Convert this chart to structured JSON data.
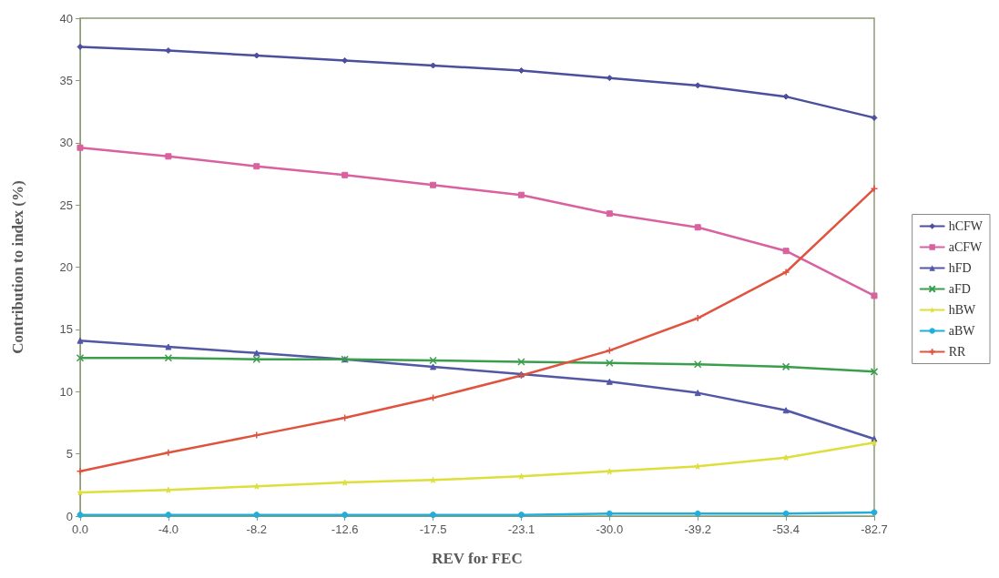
{
  "chart_data": {
    "type": "line",
    "xlabel": "REV for FEC",
    "ylabel": "Contribution to index (%)",
    "categories": [
      "0.0",
      "-4.0",
      "-8.2",
      "-12.6",
      "-17.5",
      "-23.1",
      "-30.0",
      "-39.2",
      "-53.4",
      "-82.7"
    ],
    "series": [
      {
        "name": "hCFW",
        "color": "#4b4f9e",
        "marker": "diamond",
        "values": [
          37.7,
          37.4,
          37.0,
          36.6,
          36.2,
          35.8,
          35.2,
          34.6,
          33.7,
          32.0
        ]
      },
      {
        "name": "aCFW",
        "color": "#d9619f",
        "marker": "square",
        "values": [
          29.6,
          28.9,
          28.1,
          27.4,
          26.6,
          25.8,
          24.3,
          23.2,
          21.3,
          17.7
        ]
      },
      {
        "name": "hFD",
        "color": "#5257a6",
        "marker": "triangle",
        "values": [
          14.1,
          13.6,
          13.1,
          12.6,
          12.0,
          11.4,
          10.8,
          9.9,
          8.5,
          6.2
        ]
      },
      {
        "name": "aFD",
        "color": "#3a9e4c",
        "marker": "cross",
        "values": [
          12.7,
          12.7,
          12.6,
          12.6,
          12.5,
          12.4,
          12.3,
          12.2,
          12.0,
          11.6
        ]
      },
      {
        "name": "hBW",
        "color": "#dede3c",
        "marker": "star",
        "values": [
          1.9,
          2.1,
          2.4,
          2.7,
          2.9,
          3.2,
          3.6,
          4.0,
          4.7,
          5.9
        ]
      },
      {
        "name": "aBW",
        "color": "#22aedb",
        "marker": "circle",
        "values": [
          0.1,
          0.1,
          0.1,
          0.1,
          0.1,
          0.1,
          0.2,
          0.2,
          0.2,
          0.3
        ]
      },
      {
        "name": "RR",
        "color": "#e0533f",
        "marker": "plus",
        "values": [
          3.6,
          5.1,
          6.5,
          7.9,
          9.5,
          11.3,
          13.3,
          15.9,
          19.6,
          26.3
        ]
      }
    ],
    "ylim": [
      0,
      40
    ],
    "yticks": [
      0,
      5,
      10,
      15,
      20,
      25,
      30,
      35,
      40
    ],
    "grid": false,
    "legend": "right",
    "line_style": "solid"
  }
}
